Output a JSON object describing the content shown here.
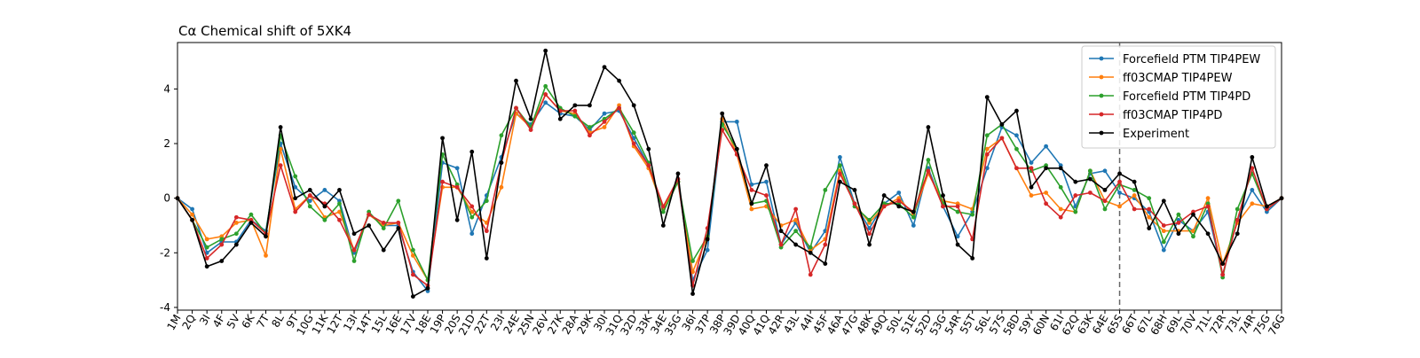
{
  "chart_data": {
    "type": "line",
    "title": "Cα Chemical shift of 5XK4",
    "xlabel": "",
    "ylabel": "",
    "ylim": [
      -4.1,
      5.7
    ],
    "yticks": [
      -4,
      -2,
      0,
      2,
      4
    ],
    "grid": false,
    "legend_position": "top-right",
    "vline_at_category": "65S",
    "categories": [
      "1M",
      "2Q",
      "3I",
      "4F",
      "5V",
      "6K",
      "7T",
      "8L",
      "9T",
      "10G",
      "11K",
      "12T",
      "13I",
      "14T",
      "15L",
      "16E",
      "17V",
      "18E",
      "19P",
      "20S",
      "21D",
      "22T",
      "23I",
      "24E",
      "25N",
      "26V",
      "27K",
      "28A",
      "29K",
      "30I",
      "31Q",
      "32D",
      "33K",
      "34E",
      "35G",
      "36I",
      "37P",
      "38P",
      "39D",
      "40Q",
      "41Q",
      "42R",
      "43L",
      "44I",
      "45F",
      "46A",
      "47G",
      "48K",
      "49Q",
      "50L",
      "51E",
      "52D",
      "53G",
      "54R",
      "55T",
      "56L",
      "57S",
      "58D",
      "59Y",
      "60N",
      "61I",
      "62Q",
      "63K",
      "64E",
      "65S",
      "66T",
      "67L",
      "68H",
      "69L",
      "70V",
      "71L",
      "72R",
      "73L",
      "74R",
      "75G",
      "76G"
    ],
    "series": [
      {
        "name": "Forcefield PTM TIP4PEW",
        "color": "#1f77b4",
        "values": [
          0.0,
          -0.4,
          -2.0,
          -1.6,
          -1.6,
          -0.8,
          -1.2,
          2.0,
          0.4,
          -0.1,
          0.3,
          -0.1,
          -2.0,
          -0.6,
          -1.0,
          -1.0,
          -2.7,
          -3.4,
          1.3,
          1.1,
          -1.3,
          0.1,
          1.5,
          3.1,
          2.7,
          3.5,
          3.1,
          3.0,
          2.5,
          3.1,
          3.2,
          2.2,
          1.2,
          -0.4,
          0.6,
          -3.0,
          -1.9,
          2.8,
          2.8,
          0.5,
          0.6,
          -1.7,
          -0.9,
          -2.0,
          -1.2,
          1.5,
          -0.2,
          -1.1,
          -0.2,
          0.2,
          -1.0,
          1.1,
          -0.3,
          -1.4,
          -0.5,
          1.1,
          2.6,
          2.3,
          1.3,
          1.9,
          1.2,
          -0.3,
          0.9,
          1.0,
          0.2,
          0.0,
          -0.5,
          -1.9,
          -0.8,
          -1.2,
          -0.5,
          -2.8,
          -0.8,
          0.3,
          -0.5,
          0.0
        ]
      },
      {
        "name": "ff03CMAP TIP4PEW",
        "color": "#ff7f0e",
        "values": [
          0.0,
          -0.6,
          -1.5,
          -1.4,
          -0.9,
          -0.8,
          -2.1,
          1.8,
          -0.4,
          0.1,
          -0.7,
          -0.5,
          -1.9,
          -0.6,
          -1.0,
          -0.9,
          -2.1,
          -3.0,
          0.4,
          0.4,
          -0.5,
          -0.9,
          0.4,
          3.1,
          2.6,
          3.8,
          3.2,
          3.1,
          2.4,
          2.6,
          3.4,
          1.9,
          1.1,
          -0.4,
          0.6,
          -2.7,
          -1.4,
          2.9,
          1.6,
          -0.4,
          -0.3,
          -1.0,
          -0.8,
          -1.9,
          -1.5,
          1.0,
          -0.2,
          -0.9,
          -0.3,
          0.0,
          -0.6,
          0.9,
          -0.1,
          -0.2,
          -0.4,
          1.8,
          2.2,
          1.1,
          0.1,
          0.2,
          -0.4,
          -0.5,
          1.0,
          -0.1,
          -0.3,
          0.1,
          -0.7,
          -1.2,
          -1.2,
          -1.2,
          0.0,
          -2.4,
          -0.9,
          -0.2,
          -0.3,
          0.0
        ]
      },
      {
        "name": "Forcefield PTM TIP4PD",
        "color": "#2ca02c",
        "values": [
          0.0,
          -0.8,
          -1.8,
          -1.5,
          -1.3,
          -0.6,
          -1.3,
          2.3,
          0.8,
          -0.3,
          -0.8,
          -0.2,
          -2.3,
          -0.5,
          -1.1,
          -0.1,
          -1.9,
          -3.0,
          1.6,
          0.5,
          -0.7,
          -0.1,
          2.3,
          3.3,
          2.6,
          4.1,
          3.3,
          3.0,
          2.6,
          2.9,
          3.3,
          2.4,
          1.3,
          -0.5,
          0.6,
          -2.3,
          -1.4,
          2.7,
          1.8,
          -0.2,
          -0.1,
          -1.8,
          -1.2,
          -1.8,
          0.3,
          1.2,
          -0.3,
          -0.8,
          -0.2,
          -0.2,
          -0.7,
          1.4,
          -0.2,
          -0.5,
          -0.6,
          2.3,
          2.7,
          1.8,
          1.0,
          1.2,
          0.4,
          -0.5,
          1.0,
          -0.4,
          0.5,
          0.3,
          0.0,
          -1.6,
          -0.6,
          -1.4,
          -0.2,
          -2.9,
          -0.4,
          0.9,
          -0.4,
          0.0
        ]
      },
      {
        "name": "ff03CMAP TIP4PD",
        "color": "#d62728",
        "values": [
          0.0,
          -0.8,
          -2.2,
          -1.7,
          -0.7,
          -0.8,
          -1.3,
          1.2,
          -0.5,
          0.1,
          -0.2,
          -0.8,
          -1.9,
          -0.6,
          -0.9,
          -0.9,
          -2.8,
          -3.2,
          0.6,
          0.4,
          -0.3,
          -1.2,
          1.3,
          3.3,
          2.5,
          3.8,
          3.2,
          3.2,
          2.3,
          2.8,
          3.3,
          2.0,
          1.2,
          -0.3,
          0.7,
          -3.2,
          -1.1,
          2.5,
          1.6,
          0.3,
          0.1,
          -1.7,
          -0.4,
          -2.8,
          -1.7,
          0.9,
          -0.2,
          -1.3,
          -0.3,
          -0.1,
          -0.5,
          1.0,
          -0.3,
          -0.3,
          -1.5,
          1.6,
          2.2,
          1.1,
          1.1,
          -0.2,
          -0.7,
          0.1,
          0.2,
          -0.1,
          0.6,
          -0.4,
          -0.4,
          -1.0,
          -0.9,
          -0.5,
          -0.3,
          -2.8,
          -0.8,
          1.1,
          -0.4,
          0.0
        ]
      },
      {
        "name": "Experiment",
        "color": "#000000",
        "values": [
          0.0,
          -0.8,
          -2.5,
          -2.3,
          -1.7,
          -0.9,
          -1.4,
          2.6,
          0.0,
          0.3,
          -0.3,
          0.3,
          -1.3,
          -1.0,
          -1.9,
          -1.1,
          -3.6,
          -3.3,
          2.2,
          -0.8,
          1.7,
          -2.2,
          1.3,
          4.3,
          2.9,
          5.4,
          2.9,
          3.4,
          3.4,
          4.8,
          4.3,
          3.4,
          1.8,
          -1.0,
          0.9,
          -3.5,
          -1.5,
          3.1,
          1.8,
          -0.2,
          1.2,
          -1.2,
          -1.7,
          -2.0,
          -2.4,
          0.6,
          0.3,
          -1.7,
          0.1,
          -0.3,
          -0.5,
          2.6,
          0.1,
          -1.7,
          -2.2,
          3.7,
          2.7,
          3.2,
          0.4,
          1.1,
          1.1,
          0.6,
          0.7,
          0.3,
          0.9,
          0.6,
          -1.1,
          -0.1,
          -1.3,
          -0.6,
          -1.3,
          -2.4,
          -1.3,
          1.5,
          -0.3,
          0.0
        ]
      }
    ]
  }
}
